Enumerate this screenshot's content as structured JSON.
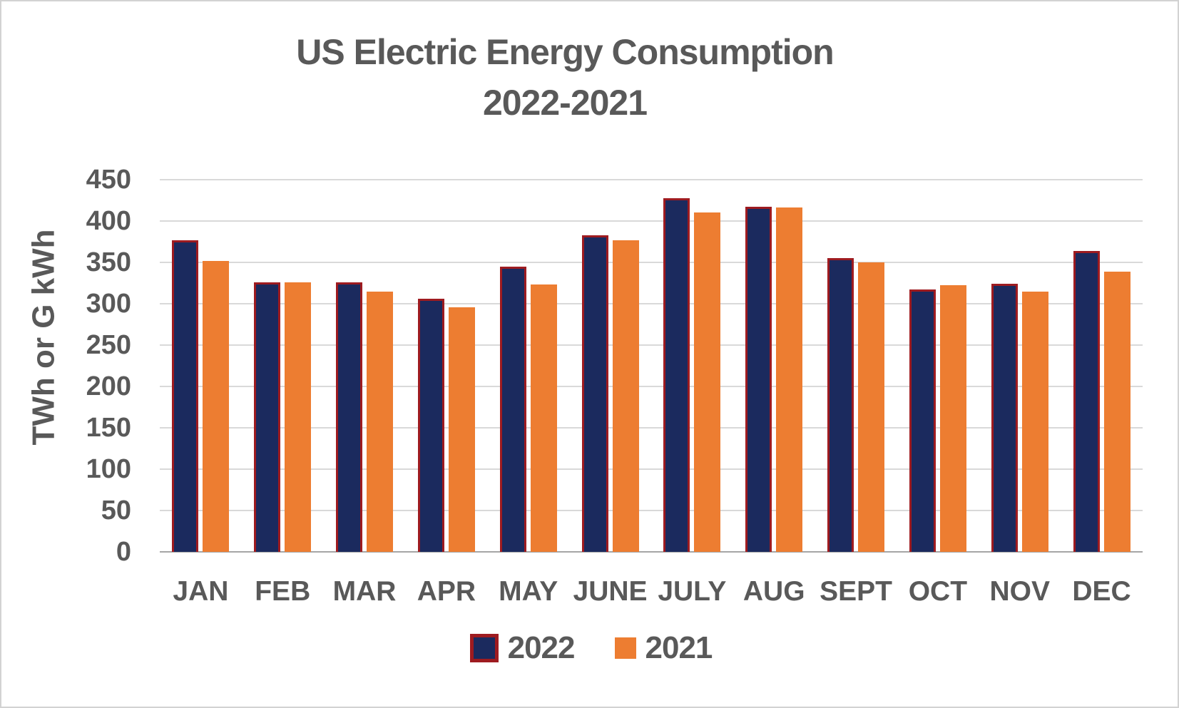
{
  "title": {
    "line1": "US Electric Energy Consumption",
    "line2": "2022-2021",
    "color": "#595959"
  },
  "y_axis": {
    "title": "TWh or G kWh",
    "ticks": [
      450,
      400,
      350,
      300,
      250,
      200,
      150,
      100,
      50,
      0
    ],
    "min": 0,
    "max": 450,
    "tick_step": 50
  },
  "x_axis": {
    "categories": [
      "JAN",
      "FEB",
      "MAR",
      "APR",
      "MAY",
      "JUNE",
      "JULY",
      "AUG",
      "SEPT",
      "OCT",
      "NOV",
      "DEC"
    ]
  },
  "legend": {
    "position": "bottom",
    "items": [
      {
        "label": "2022",
        "fill": "#1b2a5e",
        "border": "#9e1b20"
      },
      {
        "label": "2021",
        "fill": "#ed7d31",
        "border": null
      }
    ]
  },
  "colors": {
    "series_2022_fill": "#1b2a5e",
    "series_2022_border": "#9e1b20",
    "series_2021_fill": "#ed7d31",
    "text_gray": "#595959",
    "gridline": "#d9d9d9",
    "axis_line": "#a6a6a6",
    "frame_border": "#d2d2d2"
  },
  "chart_data": {
    "type": "bar",
    "title": "US Electric Energy Consumption 2022-2021",
    "xlabel": "",
    "ylabel": "TWh or G kWh",
    "ylim": [
      0,
      450
    ],
    "ytick_step": 50,
    "grid": true,
    "legend_position": "bottom",
    "categories": [
      "JAN",
      "FEB",
      "MAR",
      "APR",
      "MAY",
      "JUNE",
      "JULY",
      "AUG",
      "SEPT",
      "OCT",
      "NOV",
      "DEC"
    ],
    "series": [
      {
        "name": "2022",
        "fill": "#1b2a5e",
        "border": "#9e1b20",
        "values": [
          377,
          326,
          326,
          306,
          345,
          383,
          428,
          417,
          355,
          317,
          324,
          364
        ]
      },
      {
        "name": "2021",
        "fill": "#ed7d31",
        "border": null,
        "values": [
          352,
          326,
          315,
          296,
          323,
          377,
          410,
          416,
          350,
          322,
          315,
          339
        ]
      }
    ]
  }
}
